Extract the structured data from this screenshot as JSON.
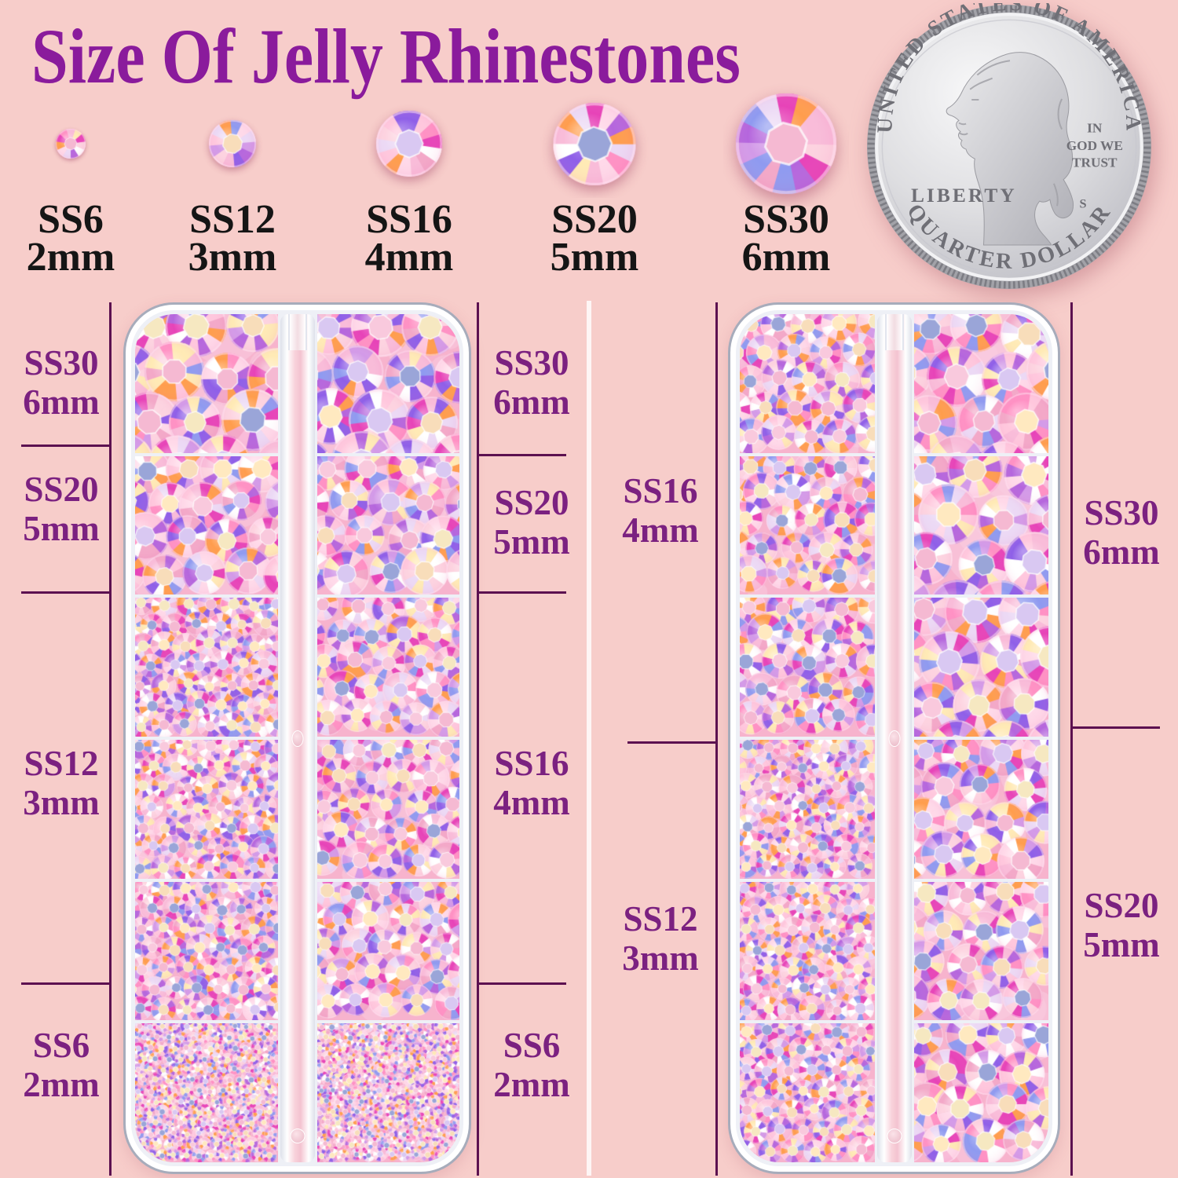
{
  "title": {
    "text": "Size Of Jelly Rhinestones"
  },
  "size_row": [
    {
      "ss": "SS6",
      "mm": "2mm"
    },
    {
      "ss": "SS12",
      "mm": "3mm"
    },
    {
      "ss": "SS16",
      "mm": "4mm"
    },
    {
      "ss": "SS20",
      "mm": "5mm"
    },
    {
      "ss": "SS30",
      "mm": "6mm"
    }
  ],
  "coin": {
    "top_text": "UNITED STATES OF AMERICA",
    "bottom_text": "QUARTER DOLLAR",
    "left_text": "LIBERTY",
    "motto_lines": [
      "IN",
      "GOD WE",
      "TRUST"
    ],
    "mint_mark": "S"
  },
  "boxes": {
    "left": {
      "left_labels": [
        {
          "ss": "SS30",
          "mm": "6mm"
        },
        {
          "ss": "SS20",
          "mm": "5mm"
        },
        {
          "ss": "SS12",
          "mm": "3mm"
        },
        {
          "ss": "SS6",
          "mm": "2mm"
        }
      ],
      "right_labels": [
        {
          "ss": "SS30",
          "mm": "6mm"
        },
        {
          "ss": "SS20",
          "mm": "5mm"
        },
        {
          "ss": "SS16",
          "mm": "4mm"
        },
        {
          "ss": "SS6",
          "mm": "2mm"
        }
      ],
      "columns": [
        [
          30,
          20,
          12,
          12,
          12,
          6
        ],
        [
          30,
          20,
          16,
          16,
          16,
          6
        ]
      ]
    },
    "right": {
      "left_labels": [
        {
          "ss": "SS16",
          "mm": "4mm"
        },
        {
          "ss": "SS12",
          "mm": "3mm"
        }
      ],
      "right_labels": [
        {
          "ss": "SS30",
          "mm": "6mm"
        },
        {
          "ss": "SS20",
          "mm": "5mm"
        }
      ],
      "columns": [
        [
          16,
          16,
          16,
          12,
          12,
          12
        ],
        [
          30,
          30,
          30,
          20,
          20,
          20
        ]
      ]
    }
  },
  "colors": {
    "background": "#f7cdca",
    "title": "#8a1b9c",
    "side_label": "#7b2180",
    "annotation_line": "#5c1150",
    "size_text": "#151515",
    "compartment_bg": "#f7b3cd",
    "facets": [
      "#ffffff",
      "#ffd9e9",
      "#f9bcd9",
      "#f3a8c8",
      "#ecd9f5",
      "#d39ae8",
      "#b566dd",
      "#8f5fe8",
      "#8f9af0",
      "#ff91c4",
      "#e743b8",
      "#ff9d4d",
      "#ffeab5",
      "#fdd3e0",
      "#ffc7dd"
    ],
    "centers": [
      "#f6e8c1",
      "#f8ddba",
      "#f9c9dd",
      "#ffe9c0",
      "#d9c8f2",
      "#f5b9d2",
      "#9aa5d8"
    ]
  }
}
